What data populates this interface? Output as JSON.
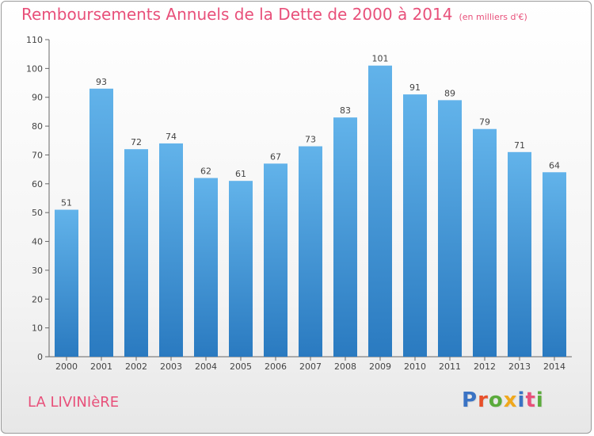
{
  "header": {
    "title": "Remboursements Annuels de la Dette de 2000 à 2014",
    "unit": "(en milliers d'€)"
  },
  "footer": {
    "commune": "LA LIVINIèRE",
    "logo": {
      "text": "Proxiti",
      "colors": [
        "#3a73c4",
        "#e8502a",
        "#5bab3c",
        "#f0a81c",
        "#3a73c4",
        "#e8507a",
        "#5bab3c"
      ]
    }
  },
  "chart_data": {
    "type": "bar",
    "categories": [
      "2000",
      "2001",
      "2002",
      "2003",
      "2004",
      "2005",
      "2006",
      "2007",
      "2008",
      "2009",
      "2010",
      "2011",
      "2012",
      "2013",
      "2014"
    ],
    "values": [
      51,
      93,
      72,
      74,
      62,
      61,
      67,
      73,
      83,
      101,
      91,
      89,
      79,
      71,
      64
    ],
    "ylim": [
      0,
      110
    ],
    "yticks": [
      0,
      10,
      20,
      30,
      40,
      50,
      60,
      70,
      80,
      90,
      100,
      110
    ],
    "grid": false,
    "bar_color_top": "#62b3ea",
    "bar_color_bottom": "#2a7ac0"
  }
}
